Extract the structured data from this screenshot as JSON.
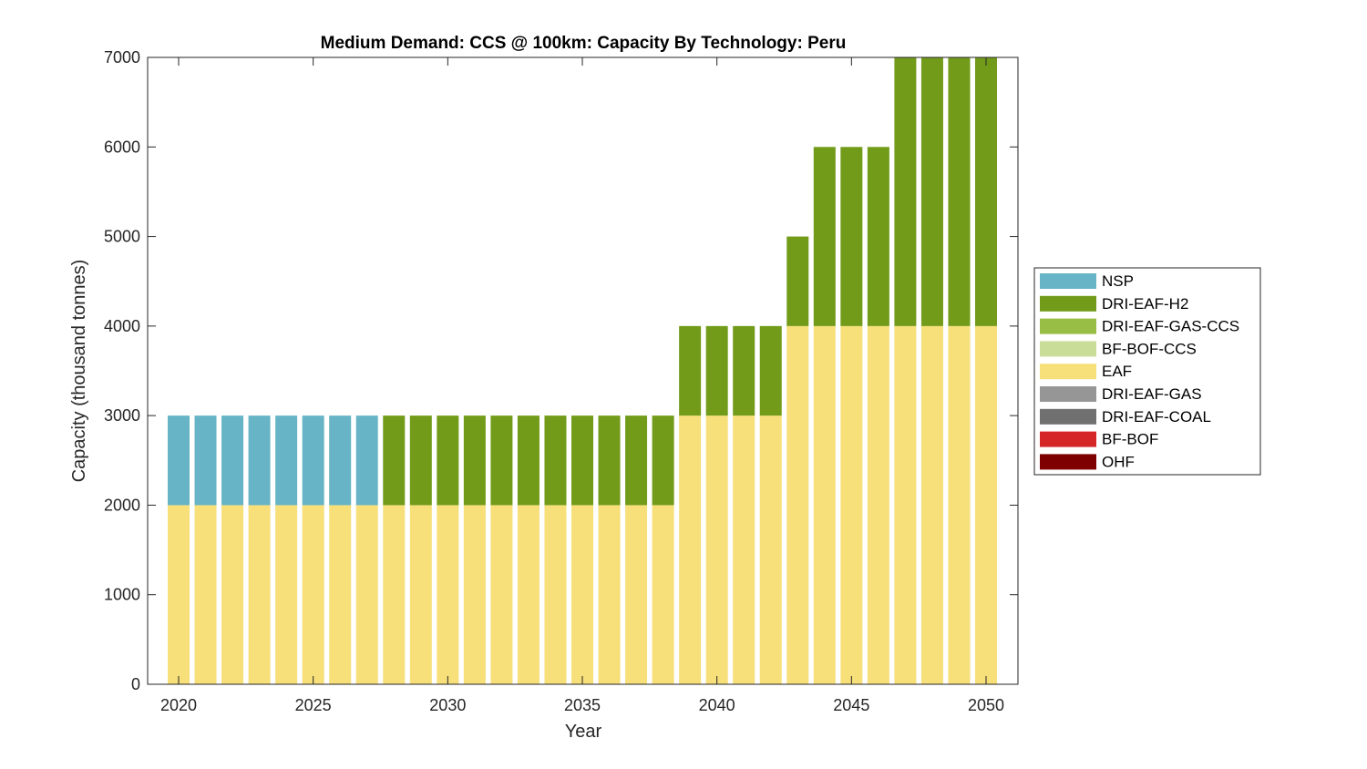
{
  "chart_data": {
    "type": "bar",
    "stacked": true,
    "title": "Medium Demand: CCS @ 100km: Capacity By Technology: Peru",
    "xlabel": "Year",
    "ylabel": "Capacity (thousand tonnes)",
    "xlim": [
      2019,
      2051
    ],
    "ylim": [
      0,
      7000
    ],
    "xticks": [
      2020,
      2025,
      2030,
      2035,
      2040,
      2045,
      2050
    ],
    "yticks": [
      0,
      1000,
      2000,
      3000,
      4000,
      5000,
      6000,
      7000
    ],
    "grid": false,
    "legend_position": "right",
    "x": [
      2020,
      2021,
      2022,
      2023,
      2024,
      2025,
      2026,
      2027,
      2028,
      2029,
      2030,
      2031,
      2032,
      2033,
      2034,
      2035,
      2036,
      2037,
      2038,
      2039,
      2040,
      2041,
      2042,
      2043,
      2044,
      2045,
      2046,
      2047,
      2048,
      2049,
      2050
    ],
    "series": [
      {
        "name": "OHF",
        "color": "#7f0000",
        "values": [
          0,
          0,
          0,
          0,
          0,
          0,
          0,
          0,
          0,
          0,
          0,
          0,
          0,
          0,
          0,
          0,
          0,
          0,
          0,
          0,
          0,
          0,
          0,
          0,
          0,
          0,
          0,
          0,
          0,
          0,
          0
        ]
      },
      {
        "name": "BF-BOF",
        "color": "#d62728",
        "values": [
          0,
          0,
          0,
          0,
          0,
          0,
          0,
          0,
          0,
          0,
          0,
          0,
          0,
          0,
          0,
          0,
          0,
          0,
          0,
          0,
          0,
          0,
          0,
          0,
          0,
          0,
          0,
          0,
          0,
          0,
          0
        ]
      },
      {
        "name": "DRI-EAF-COAL",
        "color": "#707070",
        "values": [
          0,
          0,
          0,
          0,
          0,
          0,
          0,
          0,
          0,
          0,
          0,
          0,
          0,
          0,
          0,
          0,
          0,
          0,
          0,
          0,
          0,
          0,
          0,
          0,
          0,
          0,
          0,
          0,
          0,
          0,
          0
        ]
      },
      {
        "name": "DRI-EAF-GAS",
        "color": "#969696",
        "values": [
          0,
          0,
          0,
          0,
          0,
          0,
          0,
          0,
          0,
          0,
          0,
          0,
          0,
          0,
          0,
          0,
          0,
          0,
          0,
          0,
          0,
          0,
          0,
          0,
          0,
          0,
          0,
          0,
          0,
          0,
          0
        ]
      },
      {
        "name": "EAF",
        "color": "#f7df7a",
        "values": [
          2000,
          2000,
          2000,
          2000,
          2000,
          2000,
          2000,
          2000,
          2000,
          2000,
          2000,
          2000,
          2000,
          2000,
          2000,
          2000,
          2000,
          2000,
          2000,
          3000,
          3000,
          3000,
          3000,
          4000,
          4000,
          4000,
          4000,
          4000,
          4000,
          4000,
          4000
        ]
      },
      {
        "name": "BF-BOF-CCS",
        "color": "#c9dd99",
        "values": [
          0,
          0,
          0,
          0,
          0,
          0,
          0,
          0,
          0,
          0,
          0,
          0,
          0,
          0,
          0,
          0,
          0,
          0,
          0,
          0,
          0,
          0,
          0,
          0,
          0,
          0,
          0,
          0,
          0,
          0,
          0
        ]
      },
      {
        "name": "DRI-EAF-GAS-CCS",
        "color": "#98be45",
        "values": [
          0,
          0,
          0,
          0,
          0,
          0,
          0,
          0,
          0,
          0,
          0,
          0,
          0,
          0,
          0,
          0,
          0,
          0,
          0,
          0,
          0,
          0,
          0,
          0,
          0,
          0,
          0,
          0,
          0,
          0,
          0
        ]
      },
      {
        "name": "DRI-EAF-H2",
        "color": "#719b19",
        "values": [
          0,
          0,
          0,
          0,
          0,
          0,
          0,
          0,
          1000,
          1000,
          1000,
          1000,
          1000,
          1000,
          1000,
          1000,
          1000,
          1000,
          1000,
          1000,
          1000,
          1000,
          1000,
          1000,
          2000,
          2000,
          2000,
          3000,
          3000,
          3000,
          3000
        ]
      },
      {
        "name": "NSP",
        "color": "#67b4c6",
        "values": [
          1000,
          1000,
          1000,
          1000,
          1000,
          1000,
          1000,
          1000,
          0,
          0,
          0,
          0,
          0,
          0,
          0,
          0,
          0,
          0,
          0,
          0,
          0,
          0,
          0,
          0,
          0,
          0,
          0,
          0,
          0,
          0,
          0
        ]
      }
    ],
    "legend_order": [
      "NSP",
      "DRI-EAF-H2",
      "DRI-EAF-GAS-CCS",
      "BF-BOF-CCS",
      "EAF",
      "DRI-EAF-GAS",
      "DRI-EAF-COAL",
      "BF-BOF",
      "OHF"
    ]
  }
}
